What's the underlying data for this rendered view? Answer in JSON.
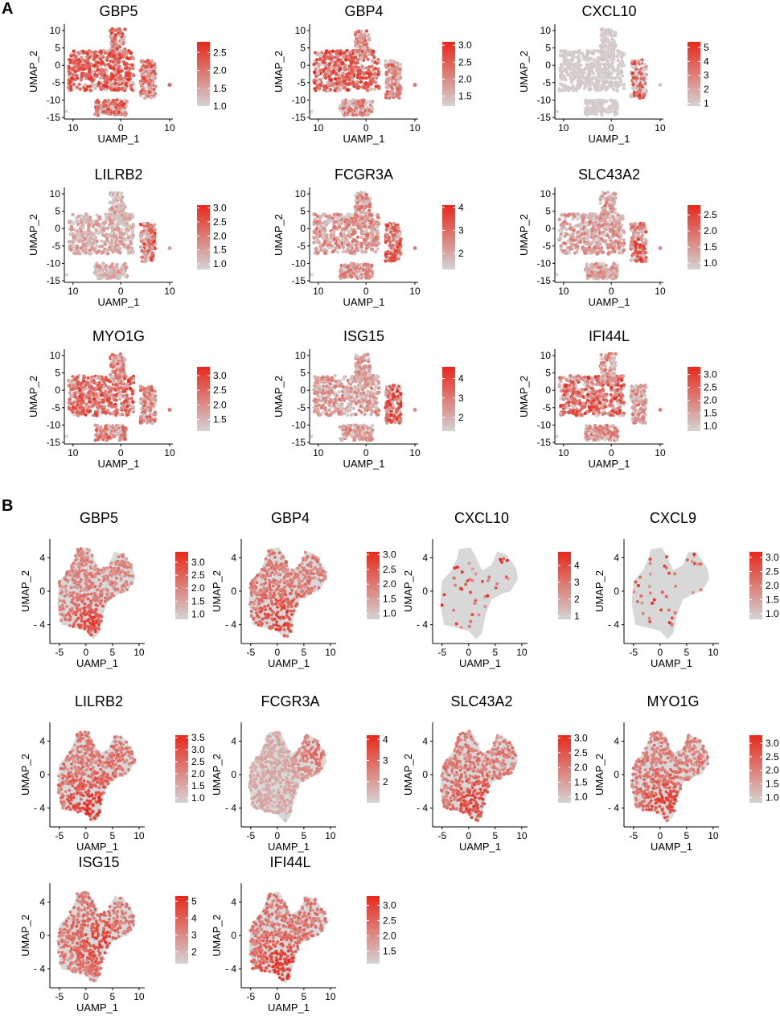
{
  "panel_labels": [
    "A",
    "B"
  ],
  "colors": {
    "low": "#d3d3d3",
    "high": "#e8281b"
  },
  "chart_data": [
    {
      "panel": "A",
      "type": "scatter",
      "title": "GBP5",
      "xlabel": "UAMP_1",
      "ylabel": "UMAP_2",
      "xticks": [
        "10",
        "0",
        "10"
      ],
      "yticks": [
        "10",
        "5",
        "0",
        "-5",
        "-10",
        "-15"
      ],
      "legend_ticks": [
        "2.5",
        "2.0",
        "1.5",
        "1.0"
      ],
      "legend_range": [
        1.0,
        2.8
      ],
      "intensity": 0.65,
      "hotspot_cluster": 0
    },
    {
      "panel": "A",
      "type": "scatter",
      "title": "GBP4",
      "xlabel": "UAMP_1",
      "ylabel": "UMAP_2",
      "xticks": [
        "10",
        "0",
        "10"
      ],
      "yticks": [
        "10",
        "5",
        "0",
        "-5",
        "-10",
        "-15"
      ],
      "legend_ticks": [
        "3.0",
        "2.5",
        "2.0",
        "1.5"
      ],
      "legend_range": [
        1.2,
        3.1
      ],
      "intensity": 0.55,
      "hotspot_cluster": 0
    },
    {
      "panel": "A",
      "type": "scatter",
      "title": "CXCL10",
      "xlabel": "UAMP_1",
      "ylabel": "UMAP_2",
      "xticks": [
        "10",
        "0",
        "10"
      ],
      "yticks": [
        "10",
        "5",
        "0",
        "-5",
        "-10",
        "-15"
      ],
      "legend_ticks": [
        "5",
        "4",
        "3",
        "2",
        "1"
      ],
      "legend_range": [
        0.8,
        5.4
      ],
      "intensity": 0.06,
      "hotspot_cluster": 1
    },
    {
      "panel": "A",
      "type": "scatter",
      "title": "LILRB2",
      "xlabel": "UAMP_1",
      "ylabel": "UMAP_2",
      "xticks": [
        "10",
        "0",
        "10"
      ],
      "yticks": [
        "10",
        "5",
        "0",
        "-5",
        "-10",
        "-15"
      ],
      "legend_ticks": [
        "3.0",
        "2.5",
        "2.0",
        "1.5",
        "1.0"
      ],
      "legend_range": [
        0.8,
        3.1
      ],
      "intensity": 0.3,
      "hotspot_cluster": 1
    },
    {
      "panel": "A",
      "type": "scatter",
      "title": "FCGR3A",
      "xlabel": "UAMP_1",
      "ylabel": "UMAP_2",
      "xticks": [
        "10",
        "0",
        "10"
      ],
      "yticks": [
        "10",
        "5",
        "0",
        "-5",
        "-10",
        "-15"
      ],
      "legend_ticks": [
        "4",
        "3",
        "2"
      ],
      "legend_range": [
        1.3,
        4.1
      ],
      "intensity": 0.45,
      "hotspot_cluster": 1
    },
    {
      "panel": "A",
      "type": "scatter",
      "title": "SLC43A2",
      "xlabel": "UAMP_1",
      "ylabel": "UMAP_2",
      "xticks": [
        "10",
        "0",
        "10"
      ],
      "yticks": [
        "10",
        "5",
        "0",
        "-5",
        "-10",
        "-15"
      ],
      "legend_ticks": [
        "2.5",
        "2.0",
        "1.5",
        "1.0"
      ],
      "legend_range": [
        0.8,
        2.8
      ],
      "intensity": 0.4,
      "hotspot_cluster": 1
    },
    {
      "panel": "A",
      "type": "scatter",
      "title": "MYO1G",
      "xlabel": "UAMP_1",
      "ylabel": "UMAP_2",
      "xticks": [
        "10",
        "0",
        "10"
      ],
      "yticks": [
        "10",
        "5",
        "0",
        "-5",
        "-10",
        "-15"
      ],
      "legend_ticks": [
        "3.0",
        "2.5",
        "2.0",
        "1.5"
      ],
      "legend_range": [
        1.1,
        3.3
      ],
      "intensity": 0.55,
      "hotspot_cluster": 0
    },
    {
      "panel": "A",
      "type": "scatter",
      "title": "ISG15",
      "xlabel": "UAMP_1",
      "ylabel": "UMAP_2",
      "xticks": [
        "10",
        "0",
        "10"
      ],
      "yticks": [
        "10",
        "5",
        "0",
        "-5",
        "-10",
        "-15"
      ],
      "legend_ticks": [
        "4",
        "3",
        "2"
      ],
      "legend_range": [
        1.3,
        4.6
      ],
      "intensity": 0.4,
      "hotspot_cluster": 1
    },
    {
      "panel": "A",
      "type": "scatter",
      "title": "IFI44L",
      "xlabel": "UAMP_1",
      "ylabel": "UMAP_2",
      "xticks": [
        "10",
        "0",
        "10"
      ],
      "yticks": [
        "10",
        "5",
        "0",
        "-5",
        "-10",
        "-15"
      ],
      "legend_ticks": [
        "3.0",
        "2.5",
        "2.0",
        "1.5",
        "1.0"
      ],
      "legend_range": [
        0.8,
        3.3
      ],
      "intensity": 0.45,
      "hotspot_cluster": 0
    },
    {
      "panel": "B",
      "type": "scatter",
      "title": "GBP5",
      "xlabel": "UAMP_1",
      "ylabel": "UMAP_2",
      "xticks": [
        "-5",
        "0",
        "5",
        "10"
      ],
      "yticks": [
        "4",
        "0",
        "- 4"
      ],
      "legend_ticks": [
        "3.0",
        "2.5",
        "2.0",
        "1.5",
        "1.0"
      ],
      "legend_range": [
        0.8,
        3.4
      ],
      "intensity": 0.45,
      "hotspot": "south"
    },
    {
      "panel": "B",
      "type": "scatter",
      "title": "GBP4",
      "xlabel": "UAMP_1",
      "ylabel": "UMAP_2",
      "xticks": [
        "-5",
        "0",
        "5",
        "10"
      ],
      "yticks": [
        "4",
        "0",
        "- 4"
      ],
      "legend_ticks": [
        "3.0",
        "2.5",
        "2.0",
        "1.5",
        "1.0"
      ],
      "legend_range": [
        0.8,
        3.1
      ],
      "intensity": 0.5,
      "hotspot": "south"
    },
    {
      "panel": "B",
      "type": "scatter",
      "title": "CXCL10",
      "xlabel": "UAMP_1",
      "ylabel": "UMAP_2",
      "xticks": [
        "-5",
        "0",
        "5",
        "10"
      ],
      "yticks": [
        "4",
        "0",
        "- 4"
      ],
      "legend_ticks": [
        "4",
        "3",
        "2",
        "1"
      ],
      "legend_range": [
        0.8,
        4.8
      ],
      "intensity": 0.08,
      "hotspot": "center"
    },
    {
      "panel": "B",
      "type": "scatter",
      "title": "CXCL9",
      "xlabel": "UAMP_1",
      "ylabel": "UMAP_2",
      "xticks": [
        "-5",
        "0",
        "5",
        "10"
      ],
      "yticks": [
        "4",
        "0",
        "- 4"
      ],
      "legend_ticks": [
        "3.0",
        "2.5",
        "2.0",
        "1.5",
        "1.0"
      ],
      "legend_range": [
        0.8,
        3.2
      ],
      "intensity": 0.02,
      "hotspot": "center"
    },
    {
      "panel": "B",
      "type": "scatter",
      "title": "LILRB2",
      "xlabel": "UAMP_1",
      "ylabel": "UMAP_2",
      "xticks": [
        "-5",
        "0",
        "5",
        "10"
      ],
      "yticks": [
        "4",
        "0",
        "- 4"
      ],
      "legend_ticks": [
        "3.5",
        "3.0",
        "2.5",
        "2.0",
        "1.5",
        "1.0"
      ],
      "legend_range": [
        0.8,
        3.6
      ],
      "intensity": 0.55,
      "hotspot": "south"
    },
    {
      "panel": "B",
      "type": "scatter",
      "title": "FCGR3A",
      "xlabel": "UAMP_1",
      "ylabel": "UMAP_2",
      "xticks": [
        "-5",
        "0",
        "5",
        "10"
      ],
      "yticks": [
        "4",
        "0",
        "- 4"
      ],
      "legend_ticks": [
        "4",
        "3",
        "2"
      ],
      "legend_range": [
        1.0,
        4.2
      ],
      "intensity": 0.25,
      "hotspot": "northeast"
    },
    {
      "panel": "B",
      "type": "scatter",
      "title": "SLC43A2",
      "xlabel": "UAMP_1",
      "ylabel": "UMAP_2",
      "xticks": [
        "-5",
        "0",
        "5",
        "10"
      ],
      "yticks": [
        "4",
        "0",
        "- 4"
      ],
      "legend_ticks": [
        "3.0",
        "2.5",
        "2.0",
        "1.5",
        "1.0"
      ],
      "legend_range": [
        0.8,
        3.1
      ],
      "intensity": 0.5,
      "hotspot": "south"
    },
    {
      "panel": "B",
      "type": "scatter",
      "title": "MYO1G",
      "xlabel": "UAMP_1",
      "ylabel": "UMAP_2",
      "xticks": [
        "-5",
        "0",
        "5",
        "10"
      ],
      "yticks": [
        "4",
        "0",
        "- 4"
      ],
      "legend_ticks": [
        "3.0",
        "2.5",
        "2.0",
        "1.5",
        "1.0"
      ],
      "legend_range": [
        0.8,
        3.3
      ],
      "intensity": 0.5,
      "hotspot": "south"
    },
    {
      "panel": "B",
      "type": "scatter",
      "title": "ISG15",
      "xlabel": "UAMP_1",
      "ylabel": "UMAP_2",
      "xticks": [
        "-5",
        "0",
        "5",
        "10"
      ],
      "yticks": [
        "4",
        "0",
        "- 4"
      ],
      "legend_ticks": [
        "5",
        "4",
        "3",
        "2"
      ],
      "legend_range": [
        1.3,
        5.3
      ],
      "intensity": 0.5,
      "hotspot": "center"
    },
    {
      "panel": "B",
      "type": "scatter",
      "title": "IFI44L",
      "xlabel": "UAMP_1",
      "ylabel": "UMAP_2",
      "xticks": [
        "-5",
        "0",
        "5",
        "10"
      ],
      "yticks": [
        "4",
        "0",
        "- 4"
      ],
      "legend_ticks": [
        "3.0",
        "2.5",
        "2.0",
        "1.5"
      ],
      "legend_range": [
        1.1,
        3.3
      ],
      "intensity": 0.55,
      "hotspot": "south"
    }
  ]
}
